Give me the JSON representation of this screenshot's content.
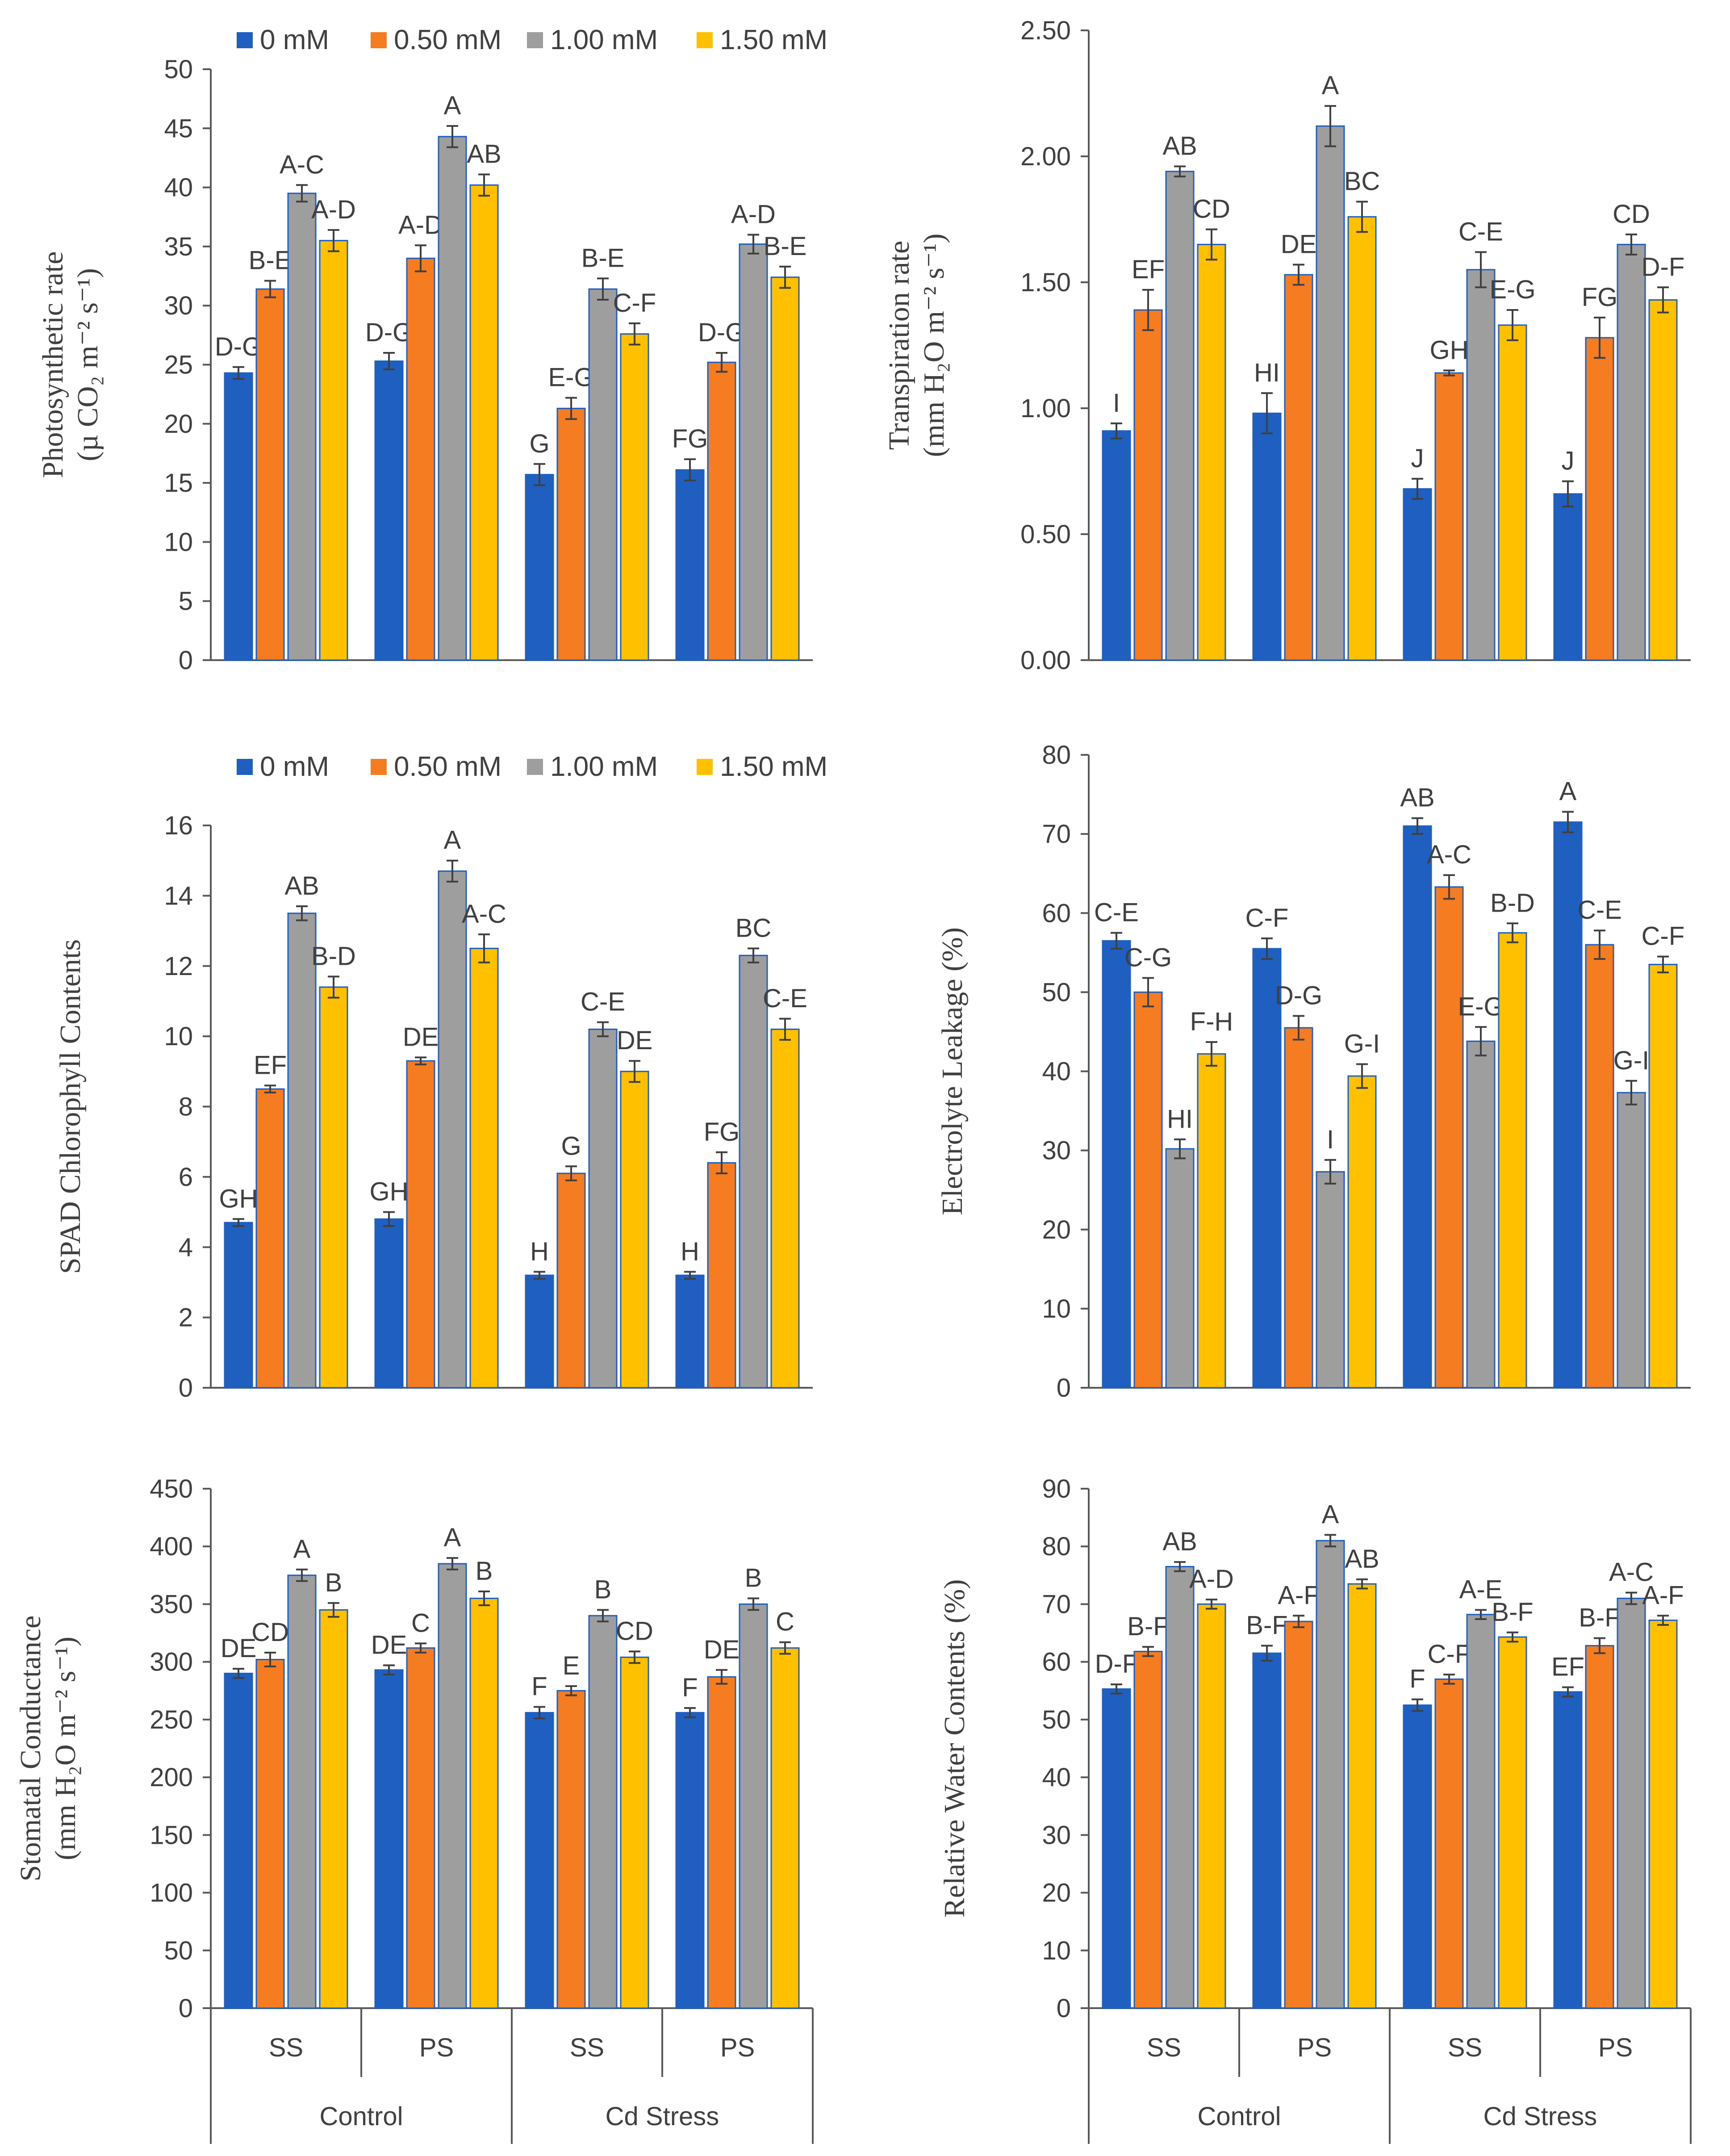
{
  "colors": {
    "0 mM": "#1F5FBF",
    "0.50 mM": "#F57C20",
    "1.00 mM": "#9E9E9E",
    "1.50 mM": "#FFC000"
  },
  "chart_data": [
    {
      "id": "photo",
      "type": "bar",
      "ylabel_lines": [
        "Photosynthetic rate",
        "(µ CO₂ m⁻² s⁻¹)"
      ],
      "ylim": [
        0,
        50
      ],
      "yticks": [
        "0",
        "5",
        "10",
        "15",
        "20",
        "25",
        "30",
        "35",
        "40",
        "45",
        "50"
      ],
      "grid": false,
      "legend": [
        "0 mM",
        "0.50 mM",
        "1.00 mM",
        "1.50 mM"
      ],
      "legend_position": "top",
      "categories": [
        "SS",
        "PS",
        "SS",
        "PS"
      ],
      "groups": [
        "Control",
        "Cd Stress"
      ],
      "show_axis_labels": false,
      "series": [
        {
          "name": "0 mM",
          "values": [
            24.3,
            25.3,
            15.7,
            16.1
          ],
          "errors": [
            0.5,
            0.7,
            0.9,
            0.9
          ],
          "letters": [
            "D-G",
            "D-G",
            "G",
            "FG"
          ]
        },
        {
          "name": "0.50 mM",
          "values": [
            31.4,
            34.0,
            21.3,
            25.2
          ],
          "errors": [
            0.7,
            1.1,
            0.9,
            0.8
          ],
          "letters": [
            "B-E",
            "A-D",
            "E-G",
            "D-G"
          ]
        },
        {
          "name": "1.00 mM",
          "values": [
            39.5,
            44.3,
            31.4,
            35.2
          ],
          "errors": [
            0.7,
            0.9,
            0.9,
            0.8
          ],
          "letters": [
            "A-C",
            "A",
            "B-E",
            "A-D"
          ]
        },
        {
          "name": "1.50 mM",
          "values": [
            35.5,
            40.2,
            27.6,
            32.4
          ],
          "errors": [
            0.9,
            0.9,
            0.9,
            0.9
          ],
          "letters": [
            "A-D",
            "AB",
            "C-F",
            "B-E"
          ]
        }
      ]
    },
    {
      "id": "trans",
      "type": "bar",
      "ylabel_lines": [
        "Transpiration rate",
        "(mm H₂O m⁻² s⁻¹)"
      ],
      "ylim": [
        0,
        2.5
      ],
      "yticks": [
        "0.00",
        "0.50",
        "1.00",
        "1.50",
        "2.00",
        "2.50"
      ],
      "grid": false,
      "legend": [],
      "legend_position": "none",
      "categories": [
        "SS",
        "PS",
        "SS",
        "PS"
      ],
      "groups": [
        "Control",
        "Cd Stress"
      ],
      "show_axis_labels": false,
      "series": [
        {
          "name": "0 mM",
          "values": [
            0.91,
            0.98,
            0.68,
            0.66
          ],
          "errors": [
            0.03,
            0.08,
            0.04,
            0.05
          ],
          "letters": [
            "I",
            "HI",
            "J",
            "J"
          ]
        },
        {
          "name": "0.50 mM",
          "values": [
            1.39,
            1.53,
            1.14,
            1.28
          ],
          "errors": [
            0.08,
            0.04,
            0.01,
            0.08
          ],
          "letters": [
            "EF",
            "DE",
            "GH",
            "FG"
          ]
        },
        {
          "name": "1.00 mM",
          "values": [
            1.94,
            2.12,
            1.55,
            1.65
          ],
          "errors": [
            0.02,
            0.08,
            0.07,
            0.04
          ],
          "letters": [
            "AB",
            "A",
            "C-E",
            "CD"
          ]
        },
        {
          "name": "1.50 mM",
          "values": [
            1.65,
            1.76,
            1.33,
            1.43
          ],
          "errors": [
            0.06,
            0.06,
            0.06,
            0.05
          ],
          "letters": [
            "CD",
            "BC",
            "E-G",
            "D-F"
          ]
        }
      ]
    },
    {
      "id": "spad",
      "type": "bar",
      "ylabel_lines": [
        "SPAD Chlorophyll Contents"
      ],
      "ylim": [
        0,
        16
      ],
      "yticks": [
        "0",
        "2",
        "4",
        "6",
        "8",
        "10",
        "12",
        "14",
        "16"
      ],
      "grid": false,
      "legend": [
        "0 mM",
        "0.50 mM",
        "1.00 mM",
        "1.50 mM"
      ],
      "legend_position": "top",
      "categories": [
        "SS",
        "PS",
        "SS",
        "PS"
      ],
      "groups": [
        "Control",
        "Cd Stress"
      ],
      "show_axis_labels": false,
      "series": [
        {
          "name": "0 mM",
          "values": [
            4.7,
            4.8,
            3.2,
            3.2
          ],
          "errors": [
            0.1,
            0.2,
            0.1,
            0.1
          ],
          "letters": [
            "GH",
            "GH",
            "H",
            "H"
          ]
        },
        {
          "name": "0.50 mM",
          "values": [
            8.5,
            9.3,
            6.1,
            6.4
          ],
          "errors": [
            0.1,
            0.1,
            0.2,
            0.3
          ],
          "letters": [
            "EF",
            "DE",
            "G",
            "FG"
          ]
        },
        {
          "name": "1.00 mM",
          "values": [
            13.5,
            14.7,
            10.2,
            12.3
          ],
          "errors": [
            0.2,
            0.3,
            0.2,
            0.2
          ],
          "letters": [
            "AB",
            "A",
            "C-E",
            "BC"
          ]
        },
        {
          "name": "1.50 mM",
          "values": [
            11.4,
            12.5,
            9.0,
            10.2
          ],
          "errors": [
            0.3,
            0.4,
            0.3,
            0.3
          ],
          "letters": [
            "B-D",
            "A-C",
            "DE",
            "C-E"
          ]
        }
      ]
    },
    {
      "id": "el",
      "type": "bar",
      "ylabel_lines": [
        "Electrolyte Leakage (%)"
      ],
      "ylim": [
        0,
        80
      ],
      "yticks": [
        "0",
        "10",
        "20",
        "30",
        "40",
        "50",
        "60",
        "70",
        "80"
      ],
      "grid": false,
      "legend": [],
      "legend_position": "none",
      "categories": [
        "SS",
        "PS",
        "SS",
        "PS"
      ],
      "groups": [
        "Control",
        "Cd Stress"
      ],
      "show_axis_labels": false,
      "series": [
        {
          "name": "0 mM",
          "values": [
            56.5,
            55.5,
            71.0,
            71.5
          ],
          "errors": [
            1.0,
            1.3,
            1.0,
            1.3
          ],
          "letters": [
            "C-E",
            "C-F",
            "AB",
            "A"
          ]
        },
        {
          "name": "0.50 mM",
          "values": [
            50.0,
            45.5,
            63.3,
            56.0
          ],
          "errors": [
            1.8,
            1.5,
            1.5,
            1.8
          ],
          "letters": [
            "C-G",
            "D-G",
            "A-C",
            "C-E"
          ]
        },
        {
          "name": "1.00 mM",
          "values": [
            30.2,
            27.3,
            43.8,
            37.3
          ],
          "errors": [
            1.2,
            1.5,
            1.8,
            1.5
          ],
          "letters": [
            "HI",
            "I",
            "E-G",
            "G-I"
          ]
        },
        {
          "name": "1.50 mM",
          "values": [
            42.2,
            39.4,
            57.5,
            53.5
          ],
          "errors": [
            1.5,
            1.5,
            1.2,
            1.0
          ],
          "letters": [
            "F-H",
            "G-I",
            "B-D",
            "C-F"
          ]
        }
      ]
    },
    {
      "id": "gs",
      "type": "bar",
      "ylabel_lines": [
        "Stomatal Conductance",
        "(mm H₂O m⁻² s⁻¹)"
      ],
      "ylim": [
        0,
        450
      ],
      "yticks": [
        "0",
        "50",
        "100",
        "150",
        "200",
        "250",
        "300",
        "350",
        "400",
        "450"
      ],
      "grid": false,
      "legend": [],
      "legend_position": "none",
      "categories": [
        "SS",
        "PS",
        "SS",
        "PS"
      ],
      "groups": [
        "Control",
        "Cd Stress"
      ],
      "show_axis_labels": true,
      "series": [
        {
          "name": "0 mM",
          "values": [
            290,
            293,
            256,
            256
          ],
          "errors": [
            4,
            4,
            5,
            4
          ],
          "letters": [
            "DE",
            "DE",
            "F",
            "F"
          ]
        },
        {
          "name": "0.50 mM",
          "values": [
            302,
            312,
            275,
            287
          ],
          "errors": [
            6,
            4,
            4,
            6
          ],
          "letters": [
            "CD",
            "C",
            "E",
            "DE"
          ]
        },
        {
          "name": "1.00 mM",
          "values": [
            375,
            385,
            340,
            350
          ],
          "errors": [
            5,
            5,
            5,
            5
          ],
          "letters": [
            "A",
            "A",
            "B",
            "B"
          ]
        },
        {
          "name": "1.50 mM",
          "values": [
            345,
            355,
            304,
            312
          ],
          "errors": [
            6,
            6,
            5,
            5
          ],
          "letters": [
            "B",
            "B",
            "CD",
            "C"
          ]
        }
      ]
    },
    {
      "id": "rwc",
      "type": "bar",
      "ylabel_lines": [
        "Relative Water Contents (%)"
      ],
      "ylim": [
        0,
        90
      ],
      "yticks": [
        "0",
        "10",
        "20",
        "30",
        "40",
        "50",
        "60",
        "70",
        "80",
        "90"
      ],
      "grid": false,
      "legend": [],
      "legend_position": "none",
      "categories": [
        "SS",
        "PS",
        "SS",
        "PS"
      ],
      "groups": [
        "Control",
        "Cd Stress"
      ],
      "show_axis_labels": true,
      "series": [
        {
          "name": "0 mM",
          "values": [
            55.3,
            61.5,
            52.5,
            54.8
          ],
          "errors": [
            0.8,
            1.3,
            1.0,
            0.8
          ],
          "letters": [
            "D-F",
            "B-F",
            "F",
            "EF"
          ]
        },
        {
          "name": "0.50 mM",
          "values": [
            61.8,
            67.0,
            57.0,
            62.8
          ],
          "errors": [
            0.8,
            1.0,
            0.8,
            1.3
          ],
          "letters": [
            "B-F",
            "A-F",
            "C-F",
            "B-F"
          ]
        },
        {
          "name": "1.00 mM",
          "values": [
            76.5,
            81.0,
            68.2,
            71.0
          ],
          "errors": [
            0.8,
            1.0,
            0.8,
            1.0
          ],
          "letters": [
            "AB",
            "A",
            "A-E",
            "A-C"
          ]
        },
        {
          "name": "1.50 mM",
          "values": [
            70.0,
            73.5,
            64.3,
            67.2
          ],
          "errors": [
            0.8,
            0.8,
            0.8,
            0.8
          ],
          "letters": [
            "A-D",
            "AB",
            "B-F",
            "A-F"
          ]
        }
      ]
    }
  ]
}
